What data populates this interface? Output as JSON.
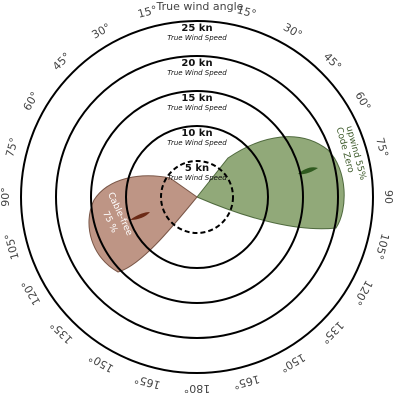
{
  "title": "True wind angle",
  "rings": [
    {
      "speed": "5 kn",
      "caption": "True Wind Speed"
    },
    {
      "speed": "10 kn",
      "caption": "True Wind Speed"
    },
    {
      "speed": "15 kn",
      "caption": "True Wind Speed"
    },
    {
      "speed": "20 kn",
      "caption": "True Wind Speed"
    },
    {
      "speed": "25 kn",
      "caption": "True Wind Speed"
    }
  ],
  "angles_right": [
    "15°",
    "30°",
    "45°",
    "60°",
    "75°",
    "90",
    "105°",
    "120°",
    "135°",
    "150°",
    "165°",
    "180°"
  ],
  "angles_left": [
    "15°",
    "30°",
    "45°",
    "60°",
    "75°",
    "90°",
    "105°",
    "120°",
    "135°",
    "150°",
    "165°"
  ],
  "sails": [
    {
      "name": "Code Zero",
      "detail": "upwind 55%"
    },
    {
      "name": "Cable-free",
      "detail": "75 %"
    }
  ]
}
